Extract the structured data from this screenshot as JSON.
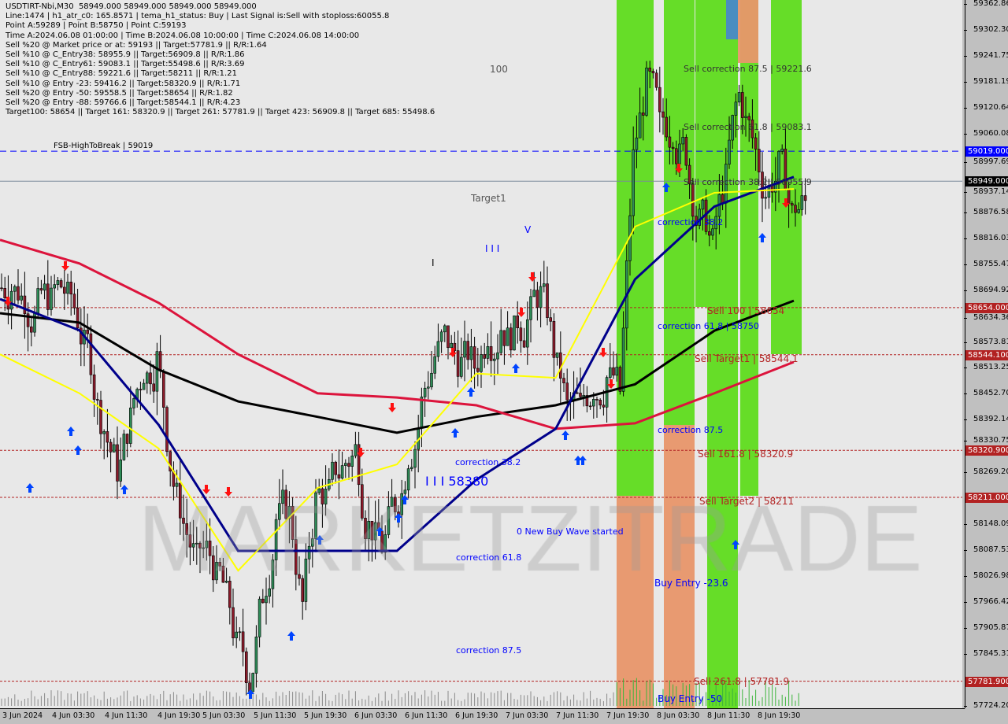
{
  "header": {
    "title": "USDTIRT-Nbi,M30  58949.000 58949.000 58949.000 58949.000",
    "lines": [
      "Line:1474 | h1_atr_c0: 165.8571 | tema_h1_status: Buy | Last Signal is:Sell with stoploss:60055.8",
      "Point A:59289 | Point B:58750 | Point C:59193",
      "Time A:2024.06.08 01:00:00 | Time B:2024.06.08 10:00:00 | Time C:2024.06.08 14:00:00",
      "Sell %20 @ Market price or at: 59193 || Target:57781.9 || R/R:1.64",
      "Sell %10 @ C_Entry38: 58955.9 || Target:56909.8 || R/R:1.86",
      "Sell %10 @ C_Entry61: 59083.1 || Target:55498.6 || R/R:3.69",
      "Sell %10 @ C_Entry88: 59221.6 || Target:58211 || R/R:1.21",
      "Sell %10 @ Entry -23: 59416.2 || Target:58320.9 || R/R:1.71",
      "Sell %20 @ Entry -50: 59558.5 || Target:58654 || R/R:1.82",
      "Sell %20 @ Entry -88: 59766.6 || Target:58544.1 || R/R:4.23",
      "Target100: 58654 || Target 161: 58320.9 || Target 261: 57781.9 || Target 423: 56909.8 || Target 685: 55498.6"
    ]
  },
  "chart_data": {
    "type": "candlestick",
    "symbol": "USDTIRT-Nbi",
    "timeframe": "M30",
    "ylim": [
      57724.205,
      59362.86
    ],
    "y_ticks": [
      "59362.860",
      "59302.305",
      "59241.750",
      "59181.195",
      "59120.640",
      "59060.085",
      "58997.695",
      "58937.140",
      "58876.585",
      "58816.030",
      "58755.475",
      "58694.920",
      "58634.365",
      "58573.810",
      "58513.255",
      "58452.700",
      "58392.145",
      "58330.755",
      "58269.200",
      "58148.090",
      "58087.535",
      "58026.980",
      "57966.425",
      "57905.870",
      "57845.315",
      "57724.205"
    ],
    "x_ticks": [
      "3 Jun 2024",
      "4 Jun 03:30",
      "4 Jun 11:30",
      "4 Jun 19:30",
      "5 Jun 03:30",
      "5 Jun 11:30",
      "5 Jun 19:30",
      "6 Jun 03:30",
      "6 Jun 11:30",
      "6 Jun 19:30",
      "7 Jun 03:30",
      "7 Jun 11:30",
      "7 Jun 19:30",
      "8 Jun 03:30",
      "8 Jun 11:30",
      "8 Jun 19:30"
    ],
    "x_start": "2024-06-03 17:00",
    "x_interval": "2h",
    "close_approx": [
      58700,
      58680,
      58655,
      58665,
      58695,
      58630,
      58540,
      58370,
      58280,
      58390,
      58510,
      58530,
      58290,
      58150,
      58060,
      58080,
      58010,
      57860,
      57780,
      57990,
      58160,
      58170,
      57960,
      58200,
      58220,
      58275,
      58320,
      58140,
      58100,
      58200,
      58310,
      58430,
      58540,
      58580,
      58520,
      58520,
      58600,
      58610,
      58590,
      58620,
      58680,
      58560,
      58420,
      58420,
      58470,
      58490,
      58460,
      59000,
      59170,
      59080,
      59070,
      59020,
      58850,
      58800,
      58950,
      59150,
      59050,
      58920,
      58980,
      58870,
      58900
    ],
    "ma_interval": "12h",
    "moving_averages": [
      {
        "color": "#000000",
        "values": [
          58641,
          58619,
          58509,
          58435,
          58399,
          58362,
          58399,
          58426,
          58475,
          58600,
          58670
        ]
      },
      {
        "color": "#dc143c",
        "values": [
          58812,
          58757,
          58665,
          58545,
          58454,
          58444,
          58426,
          58371,
          58384,
          58454,
          58527
        ]
      },
      {
        "color": "#00008b",
        "values": [
          58674,
          58601,
          58380,
          58086,
          58086,
          58086,
          58252,
          58371,
          58720,
          58890,
          58959
        ]
      },
      {
        "color": "#ffff00",
        "values": [
          58545,
          58454,
          58325,
          58040,
          58233,
          58288,
          58500,
          58490,
          58843,
          58922,
          58931
        ]
      }
    ],
    "horizontal_levels": [
      {
        "price": 59019.0,
        "label": "59019.000",
        "color": "#0000ff",
        "style": "dashed"
      },
      {
        "price": 58949.0,
        "label": "58949.000",
        "color": "#000000",
        "style": "solid"
      },
      {
        "price": 58654.0,
        "label": "58654.000",
        "color": "#b22222",
        "style": "dotted"
      },
      {
        "price": 58544.1,
        "label": "58544.100",
        "color": "#b22222",
        "style": "dotted"
      },
      {
        "price": 58320.9,
        "label": "58320.900",
        "color": "#b22222",
        "style": "dotted"
      },
      {
        "price": 58211.0,
        "label": "58211.000",
        "color": "#b22222",
        "style": "dotted"
      },
      {
        "price": 57781.9,
        "label": "57781.900",
        "color": "#b22222",
        "style": "dotted"
      }
    ],
    "annotations": {
      "fsb": "FSB-HighToBreak | 59019",
      "n100": "100",
      "target1": "Target1",
      "bars": "I I I",
      "v": "V",
      "bar1": "I",
      "c382": "correction 38.2",
      "big": "I I I 58380",
      "newbuy": "0 New Buy Wave started",
      "c618": "correction 61.8",
      "c875": "correction 87.5",
      "sc875": "Sell correction 87.5 | 59221.6",
      "sc618": "Sell correction 61.8 | 59083.1",
      "sc382": "Sell correction 38.2 | 58955.9",
      "rc382": "correction 38.2",
      "rc618": "correction 61.8 | 58750",
      "s100": "Sell 100 | 58654",
      "st1": "Sell Target1 | 58544.1",
      "rc875": "correction 87.5",
      "s1618": "Sell 161.8 | 58320.9",
      "st2": "Sell Target2 | 58211",
      "be236": "Buy Entry -23.6",
      "s2618": "Sell 261.8 | 57781.9",
      "be50": "Buy Entry -50"
    },
    "colors": {
      "buy_zone": "#5fdc1e",
      "entry_zone": "#e8966a",
      "up_arrow": "#0044ff",
      "down_arrow": "#ff1010"
    }
  },
  "watermark": "MARKETZITRADE"
}
